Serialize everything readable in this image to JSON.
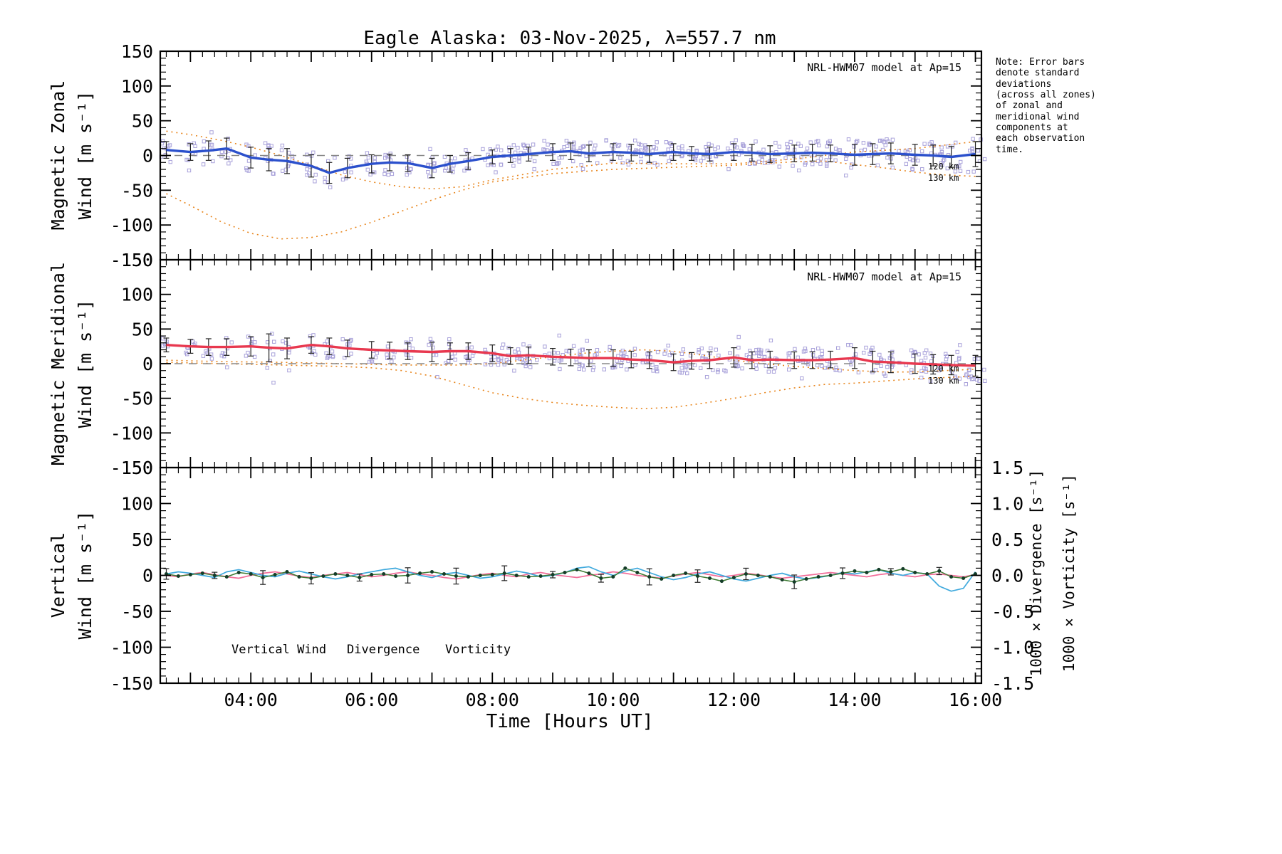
{
  "title": "Eagle Alaska: 03-Nov-2025, λ=557.7 nm",
  "xlabel": "Time [Hours UT]",
  "note": "Note: Error bars\ndenote standard\ndeviations\n(across all zones)\nof zonal and\nmeridional wind\ncomponents at\neach observation\ntime.",
  "model_label": "NRL-HWM07 model at Ap=15",
  "alt_labels": {
    "p1_120": "120 km",
    "p1_130": "130 km",
    "p2_120": "120 km",
    "p2_130": "130 km"
  },
  "legend": {
    "vertical_wind": "Vertical Wind",
    "divergence": "Divergence",
    "vorticity": "Vorticity"
  },
  "ylabels": {
    "p1_line1": "Magnetic Zonal",
    "p1_line2": "Wind [m s⁻¹]",
    "p2_line1": "Magnetic Meridional",
    "p2_line2": "Wind [m s⁻¹]",
    "p3_line1": "Vertical",
    "p3_line2": "Wind [m s⁻¹]",
    "right_div": "1000 × Divergence [s⁻¹]",
    "right_vort": "1000 × Vorticity [s⁻¹]"
  },
  "axis": {
    "x_major_labels": [
      {
        "h": 4,
        "label": "04:00"
      },
      {
        "h": 6,
        "label": "06:00"
      },
      {
        "h": 8,
        "label": "08:00"
      },
      {
        "h": 10,
        "label": "10:00"
      },
      {
        "h": 12,
        "label": "12:00"
      },
      {
        "h": 14,
        "label": "14:00"
      },
      {
        "h": 16,
        "label": "16:00"
      }
    ],
    "y_major": [
      -150,
      -100,
      -50,
      0,
      50,
      100,
      150
    ],
    "right_major": [
      -1.5,
      -1.0,
      -0.5,
      0.0,
      0.5,
      1.0,
      1.5
    ]
  },
  "colors": {
    "zonal_line": "#2b50cc",
    "meridional_line": "#e8384f",
    "model_orange": "#e8851c",
    "scatter": "#a9a2da",
    "error_bar": "#222222",
    "vertical_wind": "#53a318",
    "vertical_wind_line": "#3d7a33",
    "vertical_wind_marker": "#143c28",
    "divergence": "#3fa9dd",
    "vorticity": "#f26e9a",
    "zero_line": "#888888"
  },
  "chart_data": [
    {
      "type": "line",
      "title": "Magnetic Zonal Wind",
      "ylabel": "Magnetic Zonal Wind [m s-1]",
      "xlim": [
        2.5,
        16.1
      ],
      "ylim": [
        -150,
        150
      ],
      "series": [
        {
          "name": "zonal mean wind",
          "role": "mean",
          "color": "#2b50cc",
          "scatter": true,
          "x": [
            2.6,
            3.0,
            3.3,
            3.6,
            4.0,
            4.3,
            4.6,
            5.0,
            5.3,
            5.6,
            6.0,
            6.3,
            6.6,
            7.0,
            7.3,
            7.6,
            8.0,
            8.3,
            8.6,
            9.0,
            9.3,
            9.6,
            10.0,
            10.3,
            10.6,
            11.0,
            11.3,
            11.6,
            12.0,
            12.3,
            12.6,
            13.0,
            13.3,
            13.6,
            14.0,
            14.3,
            14.6,
            15.0,
            15.3,
            15.6,
            16.0
          ],
          "values": [
            8,
            5,
            7,
            10,
            -3,
            -6,
            -8,
            -15,
            -25,
            -18,
            -12,
            -10,
            -11,
            -18,
            -12,
            -8,
            -2,
            0,
            2,
            5,
            6,
            3,
            5,
            4,
            2,
            5,
            3,
            2,
            5,
            4,
            2,
            3,
            4,
            3,
            1,
            2,
            3,
            1,
            0,
            -2,
            2
          ],
          "errors": [
            12,
            12,
            14,
            15,
            15,
            16,
            18,
            16,
            15,
            14,
            13,
            12,
            12,
            14,
            12,
            12,
            10,
            10,
            10,
            12,
            12,
            12,
            12,
            12,
            12,
            12,
            10,
            10,
            12,
            12,
            12,
            12,
            12,
            12,
            15,
            15,
            15,
            15,
            15,
            15,
            18
          ]
        },
        {
          "name": "NRL-HWM07 120 km",
          "role": "model",
          "color": "#e8851c",
          "x": [
            2.6,
            3.0,
            3.5,
            4.0,
            4.5,
            5.0,
            5.5,
            6.0,
            6.5,
            7.0,
            7.5,
            8.0,
            9.0,
            10.0,
            11.0,
            12.0,
            13.0,
            13.5,
            14.0,
            14.5,
            15.0,
            15.5,
            16.0
          ],
          "values": [
            -55,
            -72,
            -95,
            -112,
            -120,
            -118,
            -110,
            -96,
            -80,
            -64,
            -50,
            -38,
            -26,
            -20,
            -17,
            -14,
            -9,
            -8,
            -13,
            -18,
            -24,
            -28,
            -30
          ]
        },
        {
          "name": "NRL-HWM07 130 km",
          "role": "model",
          "color": "#e8851c",
          "x": [
            2.6,
            3.0,
            3.5,
            4.0,
            4.5,
            5.0,
            5.5,
            6.0,
            6.5,
            7.0,
            7.5,
            8.0,
            9.0,
            10.0,
            11.0,
            12.0,
            13.0,
            14.0,
            15.0,
            15.5,
            16.0
          ],
          "values": [
            35,
            30,
            22,
            12,
            0,
            -14,
            -28,
            -38,
            -45,
            -48,
            -45,
            -35,
            -20,
            -11,
            -12,
            -12,
            -5,
            5,
            10,
            15,
            20
          ]
        }
      ]
    },
    {
      "type": "line",
      "title": "Magnetic Meridional Wind",
      "ylabel": "Magnetic Meridional Wind [m s-1]",
      "xlim": [
        2.5,
        16.1
      ],
      "ylim": [
        -150,
        150
      ],
      "series": [
        {
          "name": "meridional mean wind",
          "role": "mean",
          "color": "#e8384f",
          "scatter": true,
          "x": [
            2.6,
            3.0,
            3.3,
            3.6,
            4.0,
            4.3,
            4.6,
            5.0,
            5.3,
            5.6,
            6.0,
            6.3,
            6.6,
            7.0,
            7.3,
            7.6,
            8.0,
            8.3,
            8.6,
            9.0,
            9.3,
            9.6,
            10.0,
            10.3,
            10.6,
            11.0,
            11.3,
            11.6,
            12.0,
            12.3,
            12.6,
            13.0,
            13.3,
            13.6,
            14.0,
            14.3,
            14.6,
            15.0,
            15.3,
            15.6,
            16.0
          ],
          "values": [
            27,
            25,
            24,
            24,
            25,
            23,
            22,
            27,
            25,
            22,
            20,
            19,
            18,
            17,
            18,
            18,
            15,
            11,
            12,
            10,
            9,
            8,
            8,
            6,
            5,
            2,
            4,
            5,
            9,
            5,
            6,
            5,
            5,
            6,
            8,
            3,
            2,
            0,
            -1,
            -2,
            -3
          ],
          "errors": [
            10,
            10,
            12,
            12,
            14,
            20,
            15,
            12,
            12,
            12,
            12,
            12,
            12,
            14,
            12,
            12,
            12,
            12,
            12,
            12,
            12,
            12,
            12,
            12,
            12,
            12,
            12,
            12,
            14,
            12,
            12,
            12,
            12,
            12,
            15,
            15,
            15,
            14,
            14,
            14,
            15
          ]
        },
        {
          "name": "NRL-HWM07 120 km",
          "role": "model",
          "color": "#e8851c",
          "x": [
            2.6,
            3.5,
            4.5,
            5.5,
            6.0,
            6.5,
            7.0,
            7.5,
            8.0,
            8.5,
            9.0,
            9.5,
            10.0,
            10.5,
            11.0,
            11.5,
            12.0,
            12.5,
            13.0,
            13.5,
            14.0,
            14.5,
            15.0,
            15.5,
            16.0
          ],
          "values": [
            2,
            0,
            -2,
            -4,
            -6,
            -10,
            -18,
            -30,
            -42,
            -50,
            -56,
            -60,
            -63,
            -65,
            -63,
            -57,
            -50,
            -42,
            -35,
            -30,
            -28,
            -25,
            -22,
            -20,
            -18
          ]
        },
        {
          "name": "NRL-HWM07 130 km",
          "role": "model",
          "color": "#e8851c",
          "x": [
            2.6,
            3.5,
            4.5,
            5.5,
            6.5,
            7.5,
            8.0,
            8.5,
            9.0,
            9.5,
            10.0,
            10.5,
            11.0,
            11.5,
            12.0,
            12.5,
            13.0,
            13.5,
            14.0,
            14.5,
            15.0,
            15.5,
            16.0
          ],
          "values": [
            5,
            3,
            2,
            0,
            -2,
            -2,
            0,
            5,
            10,
            15,
            18,
            20,
            18,
            12,
            5,
            0,
            -4,
            -7,
            -10,
            -12,
            -12,
            -10,
            -8
          ]
        }
      ]
    },
    {
      "type": "line",
      "title": "Vertical Wind, Divergence, Vorticity",
      "ylabel": "Vertical Wind [m s-1]",
      "ylabel_right_1": "1000 x Divergence [s-1]",
      "ylabel_right_2": "1000 x Vorticity [s-1]",
      "xlim": [
        2.5,
        16.1
      ],
      "ylim": [
        -150,
        150
      ],
      "right_ylim": [
        -1.5,
        1.5
      ],
      "series": [
        {
          "name": "vorticity",
          "role": "line",
          "axis": "right",
          "color": "#f26e9a",
          "x": [
            2.6,
            2.8,
            3.0,
            3.2,
            3.4,
            3.6,
            3.8,
            4.0,
            4.2,
            4.4,
            4.6,
            4.8,
            5.0,
            5.2,
            5.4,
            5.6,
            5.8,
            6.0,
            6.2,
            6.4,
            6.6,
            6.8,
            7.0,
            7.2,
            7.4,
            7.6,
            7.8,
            8.0,
            8.2,
            8.4,
            8.6,
            8.8,
            9.0,
            9.2,
            9.4,
            9.6,
            9.8,
            10.0,
            10.2,
            10.4,
            10.6,
            10.8,
            11.0,
            11.2,
            11.4,
            11.6,
            11.8,
            12.0,
            12.2,
            12.4,
            12.6,
            12.8,
            13.0,
            13.2,
            13.4,
            13.6,
            13.8,
            14.0,
            14.2,
            14.4,
            14.6,
            14.8,
            15.0,
            15.2,
            15.4,
            15.6,
            15.8,
            16.0
          ],
          "values": [
            0.0,
            -0.02,
            0.02,
            0.04,
            0.01,
            -0.02,
            -0.04,
            0.0,
            0.03,
            0.05,
            0.02,
            -0.01,
            -0.03,
            0.0,
            0.02,
            0.04,
            0.01,
            -0.02,
            0.0,
            0.03,
            0.05,
            0.02,
            0.0,
            -0.03,
            -0.05,
            -0.02,
            0.01,
            0.03,
            0.0,
            -0.02,
            0.02,
            0.04,
            0.01,
            -0.01,
            -0.03,
            0.0,
            0.02,
            0.05,
            0.03,
            0.0,
            -0.02,
            -0.04,
            -0.01,
            0.02,
            0.04,
            0.01,
            -0.02,
            0.0,
            0.03,
            0.01,
            -0.02,
            -0.04,
            -0.02,
            0.0,
            0.02,
            0.04,
            0.02,
            0.0,
            -0.02,
            0.01,
            0.03,
            0.0,
            -0.02,
            0.01,
            0.02,
            0.0,
            -0.02,
            0.01
          ]
        },
        {
          "name": "divergence",
          "role": "line",
          "axis": "right",
          "color": "#3fa9dd",
          "x": [
            2.6,
            2.8,
            3.0,
            3.2,
            3.4,
            3.6,
            3.8,
            4.0,
            4.2,
            4.4,
            4.6,
            4.8,
            5.0,
            5.2,
            5.4,
            5.6,
            5.8,
            6.0,
            6.2,
            6.4,
            6.6,
            6.8,
            7.0,
            7.2,
            7.4,
            7.6,
            7.8,
            8.0,
            8.2,
            8.4,
            8.6,
            8.8,
            9.0,
            9.2,
            9.4,
            9.6,
            9.8,
            10.0,
            10.2,
            10.4,
            10.6,
            10.8,
            11.0,
            11.2,
            11.4,
            11.6,
            11.8,
            12.0,
            12.2,
            12.4,
            12.6,
            12.8,
            13.0,
            13.2,
            13.4,
            13.6,
            13.8,
            14.0,
            14.2,
            14.4,
            14.6,
            14.8,
            15.0,
            15.2,
            15.4,
            15.6,
            15.8,
            16.0
          ],
          "values": [
            0.02,
            0.05,
            0.03,
            0.0,
            -0.03,
            0.05,
            0.08,
            0.04,
            0.0,
            -0.02,
            0.03,
            0.06,
            0.02,
            -0.02,
            -0.05,
            -0.02,
            0.02,
            0.05,
            0.08,
            0.1,
            0.05,
            0.0,
            -0.03,
            0.02,
            0.04,
            0.0,
            -0.04,
            -0.02,
            0.02,
            0.06,
            0.03,
            -0.02,
            0.0,
            0.04,
            0.1,
            0.12,
            0.05,
            0.0,
            0.06,
            0.1,
            0.04,
            -0.02,
            -0.06,
            -0.03,
            0.02,
            0.05,
            0.0,
            -0.05,
            -0.08,
            -0.04,
            0.0,
            0.03,
            -0.02,
            -0.05,
            -0.03,
            0.0,
            0.04,
            0.02,
            0.05,
            0.08,
            0.03,
            0.0,
            0.04,
            0.02,
            -0.15,
            -0.22,
            -0.18,
            0.05
          ]
        },
        {
          "name": "vertical wind",
          "role": "line_markers",
          "color": "#3d7a33",
          "marker_color": "#143c28",
          "x": [
            2.6,
            2.8,
            3.0,
            3.2,
            3.4,
            3.6,
            3.8,
            4.0,
            4.2,
            4.4,
            4.6,
            4.8,
            5.0,
            5.2,
            5.4,
            5.6,
            5.8,
            6.0,
            6.2,
            6.4,
            6.6,
            6.8,
            7.0,
            7.2,
            7.4,
            7.6,
            7.8,
            8.0,
            8.2,
            8.4,
            8.6,
            8.8,
            9.0,
            9.2,
            9.4,
            9.6,
            9.8,
            10.0,
            10.2,
            10.4,
            10.6,
            10.8,
            11.0,
            11.2,
            11.4,
            11.6,
            11.8,
            12.0,
            12.2,
            12.4,
            12.6,
            12.8,
            13.0,
            13.2,
            13.4,
            13.6,
            13.8,
            14.0,
            14.2,
            14.4,
            14.6,
            14.8,
            15.0,
            15.2,
            15.4,
            15.6,
            15.8,
            16.0
          ],
          "values": [
            2,
            -1,
            1,
            3,
            0,
            -2,
            4,
            2,
            -3,
            1,
            5,
            -2,
            -4,
            -1,
            2,
            0,
            -3,
            1,
            2,
            -1,
            0,
            3,
            5,
            2,
            -1,
            -2,
            0,
            1,
            3,
            0,
            -2,
            -1,
            1,
            4,
            8,
            3,
            -4,
            -2,
            10,
            4,
            -2,
            -5,
            0,
            3,
            -1,
            -4,
            -8,
            -3,
            2,
            0,
            -2,
            -6,
            -9,
            -5,
            -2,
            0,
            3,
            6,
            4,
            8,
            5,
            9,
            4,
            2,
            6,
            -2,
            -4,
            2
          ]
        }
      ]
    }
  ]
}
